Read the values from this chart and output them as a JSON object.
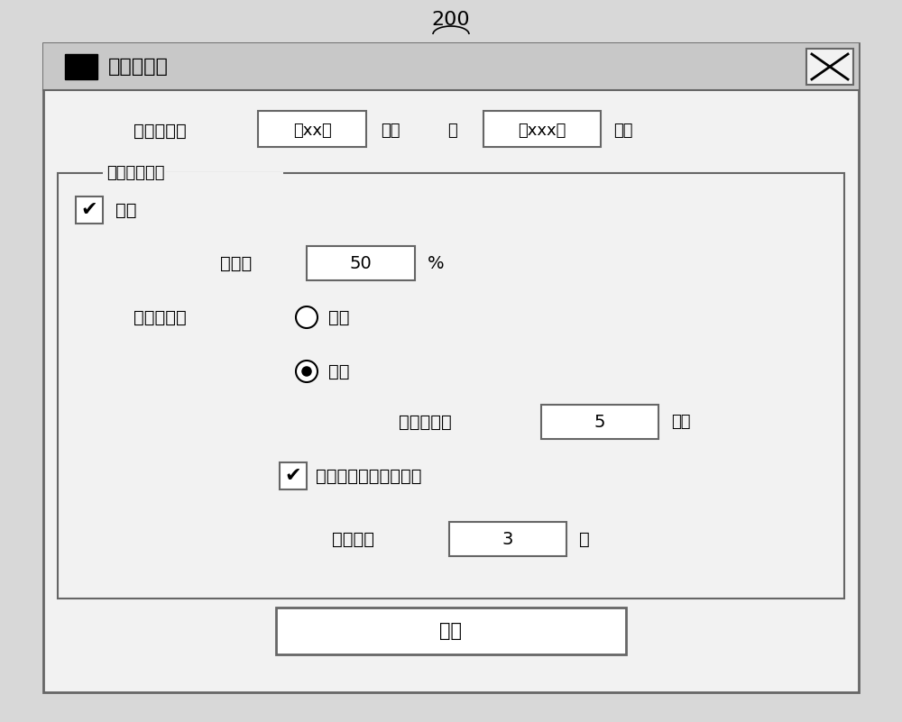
{
  "figure_label": "200",
  "title_bar_text": "预噴底设置",
  "bg_color": "#d8d8d8",
  "dialog_bg": "#f2f2f2",
  "titlebar_bg": "#c8c8c8",
  "user_area_label": "用户区域：",
  "input1_text": "第xx个",
  "pixel1_text": "像素",
  "to_text": "至",
  "input2_text": "第xxx个",
  "pixel2_text": "像素",
  "group_label": "打印控制区域",
  "ink_checkbox_label": "噴底",
  "concentration_label": "浓度：",
  "concentration_value": "50",
  "percent_text": "%",
  "timing_label": "噴射定时：",
  "radio1_label": "恒定",
  "radio2_label": "自动",
  "tag_lines_label": "标签线数：",
  "tag_lines_value": "5",
  "tag_lines_unit": "像素",
  "force_ink_label": "以一定页间隔强制噴底",
  "page_interval_label": "页间隔：",
  "page_interval_value": "3",
  "page_unit": "页",
  "ok_button_text": "确定",
  "border_color": "#999999",
  "border_dark": "#666666",
  "text_color": "#222222",
  "white": "#ffffff",
  "black": "#000000",
  "checkmark": "✔"
}
